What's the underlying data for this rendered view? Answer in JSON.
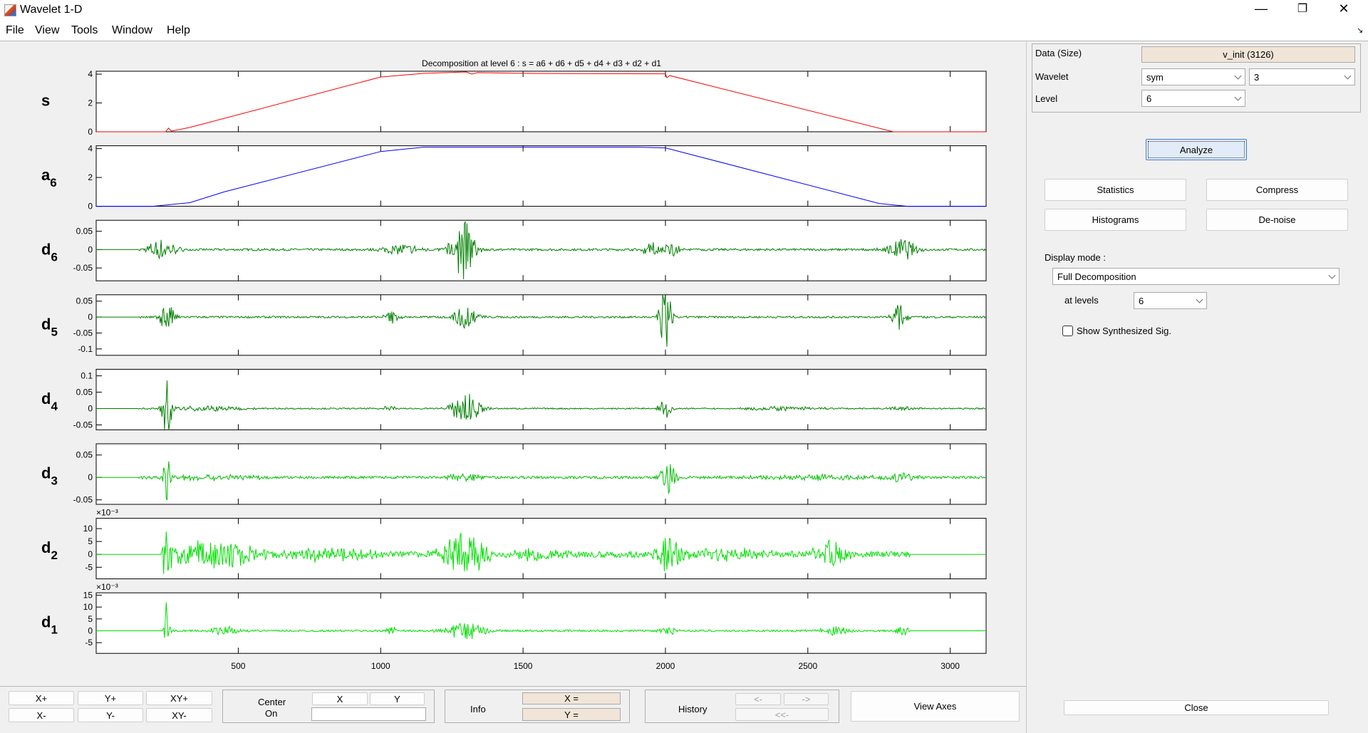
{
  "window": {
    "title": "Wavelet 1-D",
    "menus": [
      "File",
      "View",
      "Tools",
      "Window",
      "Help"
    ]
  },
  "plot": {
    "title": "Decomposition at level 6 : s = a6 + d6 + d5 + d4 + d3 + d2 + d1"
  },
  "chart_data": {
    "type": "line",
    "xlim": [
      1,
      3126
    ],
    "xticks": [
      500,
      1000,
      1500,
      2000,
      2500,
      3000
    ],
    "grid": false,
    "panels": [
      {
        "label": "s",
        "sub": "",
        "color": "#ff0000",
        "ylim": [
          0,
          4.2
        ],
        "yticks": [
          0,
          2,
          4
        ],
        "ytick_labels": [
          "0",
          "2",
          "4"
        ],
        "exponent": "",
        "points": [
          [
            1,
            0
          ],
          [
            245,
            0
          ],
          [
            255,
            0.25
          ],
          [
            265,
            0.05
          ],
          [
            330,
            0.3
          ],
          [
            1000,
            3.8
          ],
          [
            1150,
            4.05
          ],
          [
            1300,
            4.15
          ],
          [
            1320,
            4.0
          ],
          [
            1340,
            4.1
          ],
          [
            1500,
            4.05
          ],
          [
            2000,
            4.02
          ],
          [
            2005,
            3.75
          ],
          [
            2015,
            3.9
          ],
          [
            2800,
            0
          ],
          [
            3126,
            0
          ]
        ]
      },
      {
        "label": "a",
        "sub": "6",
        "color": "#0000ff",
        "ylim": [
          0,
          4.2
        ],
        "yticks": [
          0,
          2,
          4
        ],
        "ytick_labels": [
          "0",
          "2",
          "4"
        ],
        "exponent": "",
        "points": [
          [
            1,
            0
          ],
          [
            200,
            0
          ],
          [
            330,
            0.25
          ],
          [
            450,
            1.0
          ],
          [
            1000,
            3.8
          ],
          [
            1150,
            4.1
          ],
          [
            1900,
            4.1
          ],
          [
            2000,
            4.05
          ],
          [
            2750,
            0.2
          ],
          [
            2850,
            0
          ],
          [
            3126,
            0
          ]
        ]
      },
      {
        "label": "d",
        "sub": "6",
        "color": "#008000",
        "ylim": [
          -0.085,
          0.08
        ],
        "yticks": [
          0.05,
          0,
          -0.05
        ],
        "ytick_labels": [
          "0.05",
          "0",
          "-0.05"
        ],
        "exponent": "",
        "noise": 0.003,
        "bursts": [
          [
            230,
            0.03,
            60
          ],
          [
            1080,
            0.015,
            80
          ],
          [
            1290,
            0.085,
            50
          ],
          [
            1950,
            0.02,
            40
          ],
          [
            2020,
            0.02,
            40
          ],
          [
            2830,
            0.03,
            60
          ]
        ]
      },
      {
        "label": "d",
        "sub": "5",
        "color": "#008000",
        "ylim": [
          -0.12,
          0.07
        ],
        "yticks": [
          0.05,
          0,
          -0.05,
          -0.1
        ],
        "ytick_labels": [
          "0.05",
          "0",
          "-0.05",
          "-0.1"
        ],
        "exponent": "",
        "noise": 0.003,
        "bursts": [
          [
            250,
            0.05,
            30
          ],
          [
            1040,
            0.02,
            30
          ],
          [
            1300,
            0.04,
            50
          ],
          [
            2000,
            0.11,
            25
          ],
          [
            2820,
            0.04,
            30
          ]
        ]
      },
      {
        "label": "d",
        "sub": "4",
        "color": "#008000",
        "ylim": [
          -0.065,
          0.12
        ],
        "yticks": [
          0.1,
          0.05,
          0,
          -0.05
        ],
        "ytick_labels": [
          "0.1",
          "0.05",
          "0",
          "-0.05"
        ],
        "exponent": "",
        "noise": 0.002,
        "bursts": [
          [
            250,
            0.09,
            20
          ],
          [
            400,
            0.008,
            150
          ],
          [
            1030,
            0.01,
            30
          ],
          [
            1300,
            0.05,
            60
          ],
          [
            2000,
            0.03,
            30
          ],
          [
            2400,
            0.006,
            200
          ],
          [
            2830,
            0.006,
            60
          ]
        ]
      },
      {
        "label": "d",
        "sub": "3",
        "color": "#00c000",
        "ylim": [
          -0.06,
          0.075
        ],
        "yticks": [
          0.05,
          0,
          -0.05
        ],
        "ytick_labels": [
          "0.05",
          "0",
          "-0.05"
        ],
        "exponent": "",
        "noise": 0.003,
        "bursts": [
          [
            250,
            0.06,
            15
          ],
          [
            400,
            0.006,
            200
          ],
          [
            1300,
            0.01,
            80
          ],
          [
            2010,
            0.045,
            30
          ],
          [
            2550,
            0.006,
            300
          ],
          [
            2830,
            0.01,
            60
          ]
        ]
      },
      {
        "label": "d",
        "sub": "2",
        "color": "#00e000",
        "ylim": [
          -9.5,
          14
        ],
        "yticks": [
          10,
          5,
          0,
          -5
        ],
        "ytick_labels": [
          "10",
          "5",
          "0",
          "-5"
        ],
        "exponent": "×10⁻³",
        "noise": 1.2,
        "bursts": [
          [
            250,
            13,
            15
          ],
          [
            400,
            5,
            250
          ],
          [
            800,
            2,
            250
          ],
          [
            1300,
            8,
            100
          ],
          [
            1550,
            2,
            100
          ],
          [
            2010,
            8,
            50
          ],
          [
            2200,
            2,
            200
          ],
          [
            2580,
            5,
            80
          ]
        ],
        "end": 2860,
        "start": 230
      },
      {
        "label": "d",
        "sub": "1",
        "color": "#00e000",
        "ylim": [
          -9.5,
          16
        ],
        "yticks": [
          15,
          10,
          5,
          0,
          -5
        ],
        "ytick_labels": [
          "15",
          "10",
          "5",
          "0",
          "-5"
        ],
        "exponent": "×10⁻³",
        "noise": 0.4,
        "bursts": [
          [
            250,
            15,
            10
          ],
          [
            450,
            2,
            60
          ],
          [
            1040,
            2,
            30
          ],
          [
            1300,
            4,
            80
          ],
          [
            2010,
            2,
            40
          ],
          [
            2600,
            2.5,
            60
          ],
          [
            2830,
            3,
            30
          ]
        ],
        "end": 2860,
        "start": 230
      }
    ]
  },
  "right": {
    "data_label": "Data  (Size)",
    "data_value": "v_init  (3126)",
    "wavelet_label": "Wavelet",
    "wavelet_family": "sym",
    "wavelet_order": "3",
    "level_label": "Level",
    "level_value": "6",
    "analyze": "Analyze",
    "statistics": "Statistics",
    "compress": "Compress",
    "histograms": "Histograms",
    "denoise": "De-noise",
    "display_mode_label": "Display mode :",
    "display_mode": "Full Decomposition",
    "at_levels_label": "at levels",
    "at_levels": "6",
    "show_synth": "Show Synthesized Sig.",
    "close": "Close"
  },
  "bottom": {
    "zoom": [
      "X+",
      "Y+",
      "XY+",
      "X-",
      "Y-",
      "XY-"
    ],
    "center_label1": "Center",
    "center_label2": "On",
    "center_x": "X",
    "center_y": "Y",
    "center_value": "",
    "info_label": "Info",
    "info_x": "X =",
    "info_y": "Y =",
    "history_label": "History",
    "hist_back": "<-",
    "hist_fwd": "->",
    "hist_first": "<<-",
    "view_axes": "View Axes"
  }
}
